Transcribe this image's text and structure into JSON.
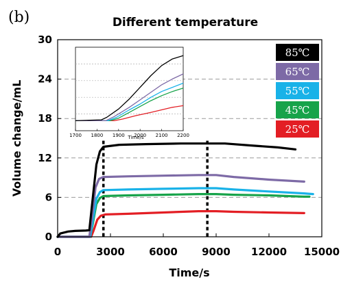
{
  "panel_label": "(b)",
  "chart_data": {
    "type": "line",
    "title": "Different temperature",
    "xlabel": "Time/s",
    "ylabel": "Volume change/mL",
    "xlim": [
      0,
      15000
    ],
    "ylim": [
      0,
      30
    ],
    "xticks": [
      "0",
      "3000",
      "6000",
      "9000",
      "12000",
      "15000"
    ],
    "yticks": [
      "0",
      "6",
      "12",
      "18",
      "24",
      "30"
    ],
    "grid": "dashed horizontal",
    "legend_position": "top-right",
    "vertical_markers": [
      2600,
      8500
    ],
    "series": [
      {
        "name": "85℃",
        "color": "#000000",
        "x": [
          0,
          150,
          600,
          1000,
          1600,
          1800,
          2000,
          2200,
          2400,
          2600,
          3500,
          5000,
          7000,
          8500,
          9500,
          11000,
          12500,
          13500
        ],
        "y": [
          0,
          0.5,
          0.8,
          0.9,
          0.95,
          1.0,
          6,
          11,
          13,
          13.7,
          14.0,
          14.1,
          14.2,
          14.2,
          14.2,
          13.9,
          13.6,
          13.3
        ]
      },
      {
        "name": "65℃",
        "color": "#7d6aa6",
        "x": [
          0,
          1800,
          1950,
          2150,
          2350,
          2600,
          4000,
          6000,
          8000,
          9000,
          10000,
          12000,
          14000
        ],
        "y": [
          0,
          0,
          3,
          7.5,
          8.8,
          9.1,
          9.2,
          9.3,
          9.4,
          9.4,
          9.1,
          8.7,
          8.4
        ]
      },
      {
        "name": "55℃",
        "color": "#19b2e8",
        "x": [
          0,
          1850,
          2000,
          2200,
          2400,
          2600,
          4000,
          6000,
          8000,
          9000,
          10000,
          12000,
          14000,
          14500
        ],
        "y": [
          0,
          0,
          2.5,
          5.8,
          6.8,
          7.1,
          7.2,
          7.3,
          7.4,
          7.4,
          7.2,
          6.9,
          6.6,
          6.5
        ]
      },
      {
        "name": "45℃",
        "color": "#17a34a",
        "x": [
          0,
          1850,
          2000,
          2200,
          2400,
          2600,
          4000,
          6000,
          8000,
          9000,
          10000,
          12000,
          14000,
          14300
        ],
        "y": [
          0,
          0,
          2,
          5,
          5.9,
          6.2,
          6.3,
          6.4,
          6.5,
          6.5,
          6.4,
          6.3,
          6.1,
          6.1
        ]
      },
      {
        "name": "25℃",
        "color": "#e31e24",
        "x": [
          0,
          1900,
          2050,
          2250,
          2450,
          2700,
          4000,
          6000,
          8000,
          9000,
          10000,
          12000,
          14000
        ],
        "y": [
          0,
          0,
          1.0,
          2.6,
          3.2,
          3.4,
          3.5,
          3.7,
          3.9,
          3.9,
          3.8,
          3.7,
          3.6
        ]
      }
    ],
    "inset": {
      "type": "line",
      "xlabel": "Time/s",
      "xlim": [
        1700,
        2200
      ],
      "ylim": [
        0,
        1
      ],
      "xticks": [
        "1700",
        "1800",
        "1900",
        "2000",
        "2100",
        "2200"
      ],
      "grid": "dotted horizontal",
      "series": [
        {
          "name": "85℃",
          "color": "#000000",
          "x": [
            1700,
            1820,
            1845,
            1900,
            1950,
            2000,
            2050,
            2100,
            2150,
            2200
          ],
          "y": [
            0.12,
            0.13,
            0.16,
            0.26,
            0.38,
            0.52,
            0.66,
            0.78,
            0.86,
            0.9
          ]
        },
        {
          "name": "65℃",
          "color": "#7d6aa6",
          "x": [
            1700,
            1840,
            1880,
            1950,
            2000,
            2050,
            2100,
            2150,
            2200
          ],
          "y": [
            0.12,
            0.12,
            0.17,
            0.28,
            0.37,
            0.46,
            0.55,
            0.62,
            0.68
          ]
        },
        {
          "name": "55℃",
          "color": "#19b2e8",
          "x": [
            1700,
            1850,
            1890,
            1950,
            2000,
            2050,
            2100,
            2150,
            2200
          ],
          "y": [
            0.12,
            0.12,
            0.16,
            0.25,
            0.32,
            0.4,
            0.47,
            0.52,
            0.57
          ]
        },
        {
          "name": "45℃",
          "color": "#17a34a",
          "x": [
            1700,
            1860,
            1900,
            1950,
            2000,
            2050,
            2100,
            2150,
            2200
          ],
          "y": [
            0.12,
            0.12,
            0.15,
            0.22,
            0.29,
            0.36,
            0.42,
            0.47,
            0.51
          ]
        },
        {
          "name": "25℃",
          "color": "#e31e24",
          "x": [
            1700,
            1880,
            1920,
            1980,
            2050,
            2100,
            2150,
            2200
          ],
          "y": [
            0.12,
            0.12,
            0.14,
            0.18,
            0.22,
            0.25,
            0.28,
            0.3
          ]
        }
      ]
    }
  }
}
